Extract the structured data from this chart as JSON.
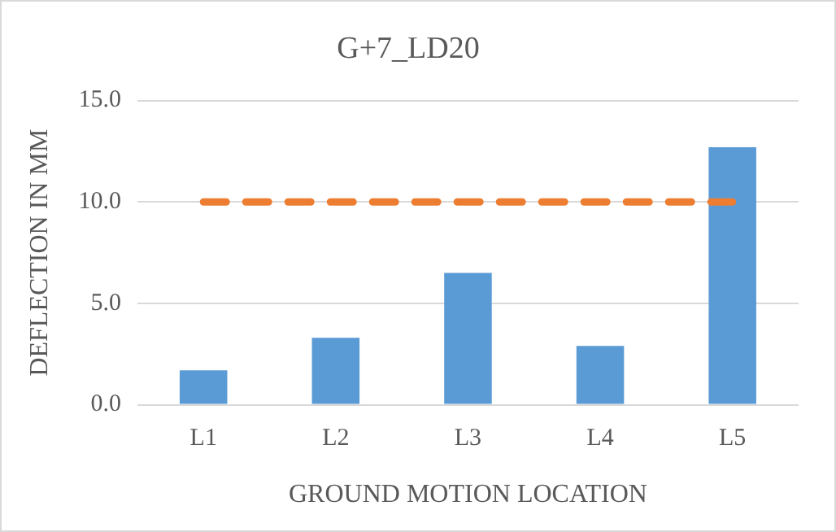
{
  "chart_data": {
    "type": "bar",
    "title": "G+7_LD20",
    "xlabel": "GROUND MOTION LOCATION",
    "ylabel": "DEFLECTION IN MM",
    "categories": [
      "L1",
      "L2",
      "L3",
      "L4",
      "L5"
    ],
    "series": [
      {
        "color": "#5b9bd5",
        "values": [
          1.7,
          3.3,
          6.5,
          2.9,
          12.7
        ]
      },
      {
        "type": "line",
        "color": "#ed7d31",
        "line_style": "dashed",
        "marker": "none",
        "values": [
          10,
          10,
          10,
          10,
          10
        ]
      }
    ],
    "ylim": [
      0,
      15
    ],
    "yticks": [
      {
        "value": 0,
        "label": "0.0"
      },
      {
        "value": 5,
        "label": "5.0"
      },
      {
        "value": 10,
        "label": "10.0"
      },
      {
        "value": 15,
        "label": "15.0"
      }
    ],
    "grid": "y",
    "legend": false
  }
}
